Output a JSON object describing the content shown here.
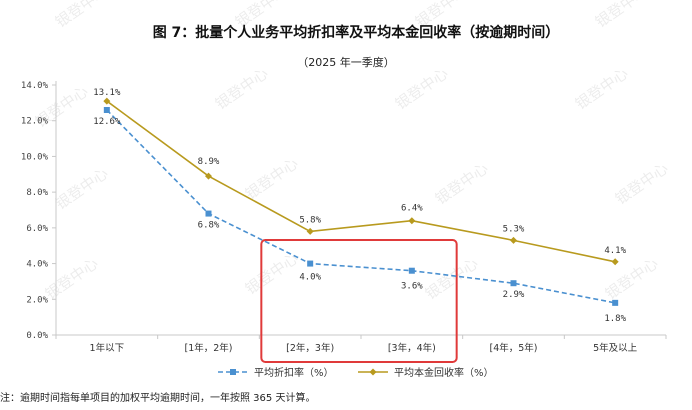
{
  "title": "图 7：批量个人业务平均折扣率及平均本金回收率（按逾期时间）",
  "subtitle": "（2025 年一季度）",
  "note": "注：逾期时间指每单项目的加权平均逾期时间，一年按照 365 天计算。",
  "watermark": "银登中心",
  "colors": {
    "discount": "#4a90d0",
    "recovery": "#b89a1e",
    "highlight": "#e03a3a",
    "axis": "#c8c8c8"
  },
  "chart_data": {
    "type": "line",
    "categories": [
      "1年以下",
      "[1年，2年)",
      "[2年，3年)",
      "[3年，4年)",
      "[4年，5年)",
      "5年及以上"
    ],
    "ylim": [
      0,
      14
    ],
    "yticks": [
      0,
      2,
      4,
      6,
      8,
      10,
      12,
      14
    ],
    "ytick_labels": [
      "0.0%",
      "2.0%",
      "4.0%",
      "6.0%",
      "8.0%",
      "10.0%",
      "12.0%",
      "14.0%"
    ],
    "grid": false,
    "legend_position": "bottom",
    "series": [
      {
        "name": "平均折扣率（%）",
        "values": [
          12.6,
          6.8,
          4.0,
          3.6,
          2.9,
          1.8
        ],
        "labels": [
          "12.6%",
          "6.8%",
          "4.0%",
          "3.6%",
          "2.9%",
          "1.8%"
        ],
        "style": "dashed",
        "marker": "square"
      },
      {
        "name": "平均本金回收率（%）",
        "values": [
          13.1,
          8.9,
          5.8,
          6.4,
          5.3,
          4.1
        ],
        "labels": [
          "13.1%",
          "8.9%",
          "5.8%",
          "6.4%",
          "5.3%",
          "4.1%"
        ],
        "style": "solid",
        "marker": "diamond"
      }
    ],
    "highlight_categories": [
      "[2年，3年)",
      "[3年，4年)"
    ]
  }
}
